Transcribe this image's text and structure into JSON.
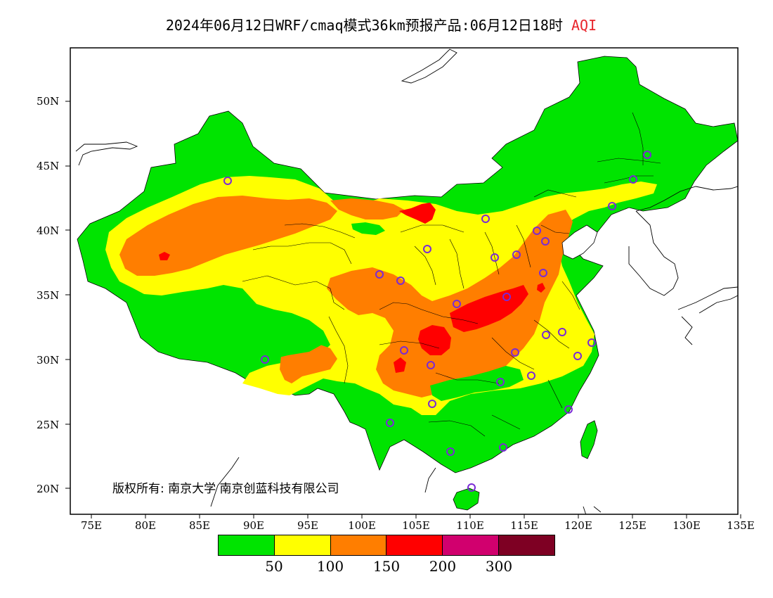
{
  "title": {
    "main": "2024年06月12日WRF/cmaq模式36km预报产品:06月12日18时",
    "product": "AQI"
  },
  "axes": {
    "latitudes": [
      "50N",
      "45N",
      "40N",
      "35N",
      "30N",
      "25N",
      "20N"
    ],
    "longitudes": [
      "75E",
      "80E",
      "85E",
      "90E",
      "95E",
      "100E",
      "105E",
      "110E",
      "115E",
      "120E",
      "125E",
      "130E",
      "135E"
    ]
  },
  "legend": {
    "colors": [
      "#00e400",
      "#ffff00",
      "#ff7e00",
      "#ff0000",
      "#d1006e",
      "#7e0023"
    ],
    "thresholds": [
      "50",
      "100",
      "150",
      "200",
      "300"
    ]
  },
  "copyright": "版权所有: 南京大学 南京创蓝科技有限公司",
  "station_marker_color": "#7a2ad6"
}
